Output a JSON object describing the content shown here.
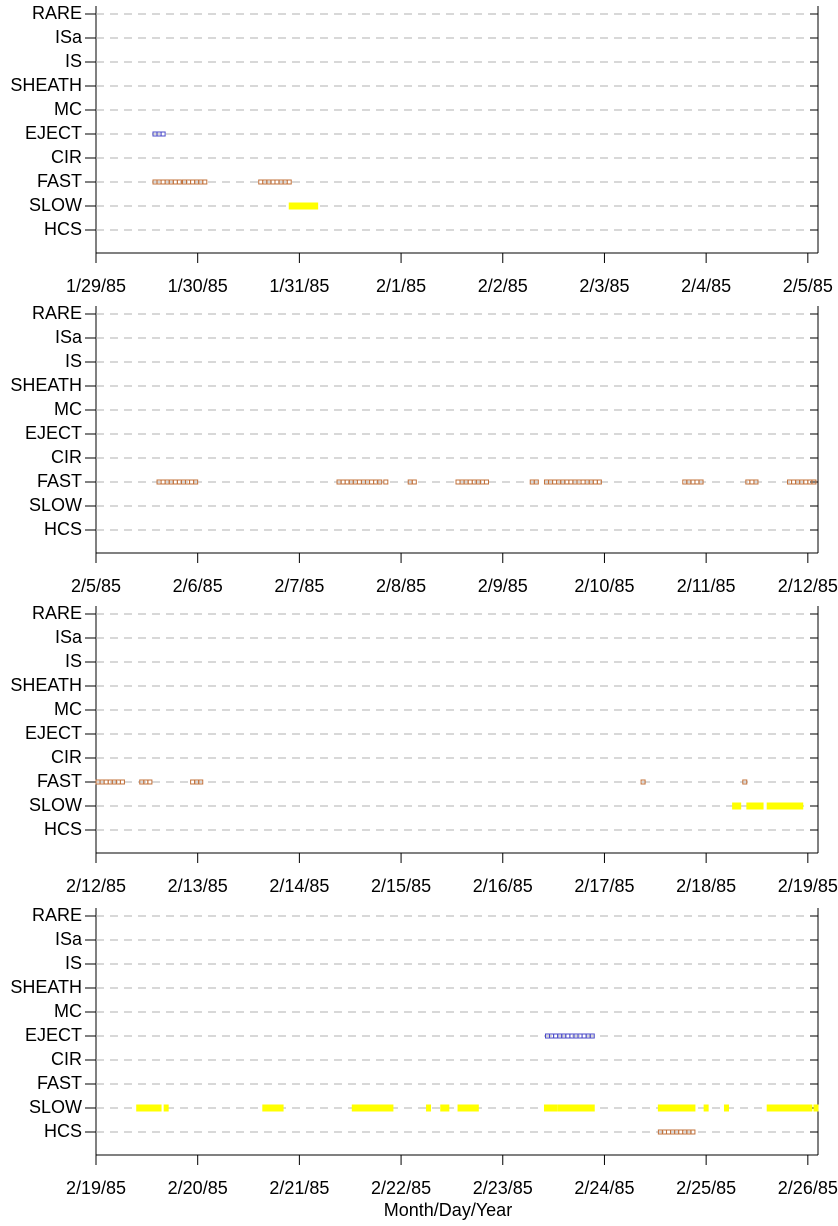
{
  "chart_data": [
    {
      "type": "event",
      "categories": [
        "RARE",
        "ISa",
        "IS",
        "SHEATH",
        "MC",
        "EJECT",
        "CIR",
        "FAST",
        "SLOW",
        "HCS"
      ],
      "xlim": [
        0,
        7.1
      ],
      "xticks": [
        {
          "value": 0,
          "label": "1/29/85"
        },
        {
          "value": 1,
          "label": "1/30/85"
        },
        {
          "value": 2,
          "label": "1/31/85"
        },
        {
          "value": 3,
          "label": "2/1/85"
        },
        {
          "value": 4,
          "label": "2/2/85"
        },
        {
          "value": 5,
          "label": "2/3/85"
        },
        {
          "value": 6,
          "label": "2/4/85"
        },
        {
          "value": 7,
          "label": "2/5/85"
        }
      ],
      "grid": true,
      "series": [
        {
          "row": 5,
          "color": "#4a4ac8",
          "filled": false,
          "x": [
            0.58,
            0.62,
            0.66
          ]
        },
        {
          "row": 7,
          "color": "#c0703a",
          "filled": false,
          "x": [
            0.58,
            0.62,
            0.66,
            0.7,
            0.74,
            0.78,
            0.82,
            0.87,
            0.91,
            0.95,
            0.99,
            1.03,
            1.07,
            1.62,
            1.66,
            1.7,
            1.74,
            1.78,
            1.82,
            1.86,
            1.9
          ]
        },
        {
          "row": 8,
          "color": "#ffff00",
          "filled": true,
          "x": [
            1.92,
            1.96,
            2.0,
            2.04,
            2.08,
            2.12,
            2.16
          ]
        }
      ]
    },
    {
      "type": "event",
      "categories": [
        "RARE",
        "ISa",
        "IS",
        "SHEATH",
        "MC",
        "EJECT",
        "CIR",
        "FAST",
        "SLOW",
        "HCS"
      ],
      "xlim": [
        0,
        7.1
      ],
      "xticks": [
        {
          "value": 0,
          "label": "2/5/85"
        },
        {
          "value": 1,
          "label": "2/6/85"
        },
        {
          "value": 2,
          "label": "2/7/85"
        },
        {
          "value": 3,
          "label": "2/8/85"
        },
        {
          "value": 4,
          "label": "2/9/85"
        },
        {
          "value": 5,
          "label": "2/10/85"
        },
        {
          "value": 6,
          "label": "2/11/85"
        },
        {
          "value": 7,
          "label": "2/12/85"
        }
      ],
      "grid": true,
      "series": [
        {
          "row": 7,
          "color": "#c0703a",
          "filled": false,
          "x": [
            0.62,
            0.66,
            0.7,
            0.74,
            0.78,
            0.82,
            0.86,
            0.9,
            0.94,
            0.98,
            2.39,
            2.43,
            2.47,
            2.51,
            2.55,
            2.59,
            2.63,
            2.67,
            2.71,
            2.75,
            2.79,
            2.85,
            3.09,
            3.13,
            3.56,
            3.6,
            3.64,
            3.68,
            3.72,
            3.76,
            3.8,
            3.84,
            4.29,
            4.33,
            4.43,
            4.47,
            4.51,
            4.55,
            4.59,
            4.63,
            4.67,
            4.71,
            4.75,
            4.79,
            4.83,
            4.87,
            4.91,
            4.95,
            5.79,
            5.83,
            5.87,
            5.91,
            5.95,
            6.41,
            6.45,
            6.49,
            6.82,
            6.86,
            6.9,
            6.94,
            6.98,
            7.02,
            7.06
          ]
        }
      ]
    },
    {
      "type": "event",
      "categories": [
        "RARE",
        "ISa",
        "IS",
        "SHEATH",
        "MC",
        "EJECT",
        "CIR",
        "FAST",
        "SLOW",
        "HCS"
      ],
      "xlim": [
        0,
        7.1
      ],
      "xticks": [
        {
          "value": 0,
          "label": "2/12/85"
        },
        {
          "value": 1,
          "label": "2/13/85"
        },
        {
          "value": 2,
          "label": "2/14/85"
        },
        {
          "value": 3,
          "label": "2/15/85"
        },
        {
          "value": 4,
          "label": "2/16/85"
        },
        {
          "value": 5,
          "label": "2/17/85"
        },
        {
          "value": 6,
          "label": "2/18/85"
        },
        {
          "value": 7,
          "label": "2/19/85"
        }
      ],
      "grid": true,
      "series": [
        {
          "row": 7,
          "color": "#c0703a",
          "filled": false,
          "x": [
            0.02,
            0.06,
            0.1,
            0.14,
            0.18,
            0.22,
            0.26,
            0.45,
            0.49,
            0.53,
            0.95,
            0.99,
            1.03,
            5.38,
            6.38
          ]
        },
        {
          "row": 8,
          "color": "#ffff00",
          "filled": true,
          "x": [
            6.28,
            6.32,
            6.42,
            6.46,
            6.5,
            6.54,
            6.62,
            6.66,
            6.7,
            6.74,
            6.78,
            6.82,
            6.86,
            6.9,
            6.93
          ]
        }
      ]
    },
    {
      "type": "event",
      "categories": [
        "RARE",
        "ISa",
        "IS",
        "SHEATH",
        "MC",
        "EJECT",
        "CIR",
        "FAST",
        "SLOW",
        "HCS"
      ],
      "xlim": [
        0,
        7.1
      ],
      "xticks": [
        {
          "value": 0,
          "label": "2/19/85"
        },
        {
          "value": 1,
          "label": "2/20/85"
        },
        {
          "value": 2,
          "label": "2/21/85"
        },
        {
          "value": 3,
          "label": "2/22/85"
        },
        {
          "value": 4,
          "label": "2/23/85"
        },
        {
          "value": 5,
          "label": "2/24/85"
        },
        {
          "value": 6,
          "label": "2/25/85"
        },
        {
          "value": 7,
          "label": "2/26/85"
        }
      ],
      "grid": true,
      "xlabel": "Month/Day/Year",
      "series": [
        {
          "row": 5,
          "color": "#4a4ac8",
          "filled": false,
          "x": [
            4.44,
            4.48,
            4.52,
            4.56,
            4.6,
            4.64,
            4.68,
            4.72,
            4.76,
            4.8,
            4.84,
            4.88
          ]
        },
        {
          "row": 9,
          "color": "#c0703a",
          "filled": false,
          "x": [
            5.55,
            5.59,
            5.63,
            5.67,
            5.71,
            5.75,
            5.79,
            5.83,
            5.87
          ]
        },
        {
          "row": 8,
          "color": "#ffff00",
          "filled": true,
          "x": [
            0.42,
            0.46,
            0.5,
            0.54,
            0.58,
            0.62,
            0.69,
            1.66,
            1.7,
            1.74,
            1.78,
            1.82,
            2.54,
            2.58,
            2.62,
            2.66,
            2.7,
            2.74,
            2.78,
            2.82,
            2.86,
            2.9,
            3.27,
            3.41,
            3.45,
            3.58,
            3.62,
            3.66,
            3.7,
            3.74,
            4.43,
            4.47,
            4.51,
            4.56,
            4.6,
            4.64,
            4.68,
            4.72,
            4.76,
            4.8,
            4.84,
            4.88,
            5.55,
            5.59,
            5.63,
            5.67,
            5.71,
            5.75,
            5.79,
            5.83,
            5.87,
            6.0,
            6.2,
            6.62,
            6.66,
            6.7,
            6.74,
            6.78,
            6.82,
            6.86,
            6.9,
            6.94,
            6.98,
            7.02,
            7.08
          ]
        }
      ]
    }
  ]
}
